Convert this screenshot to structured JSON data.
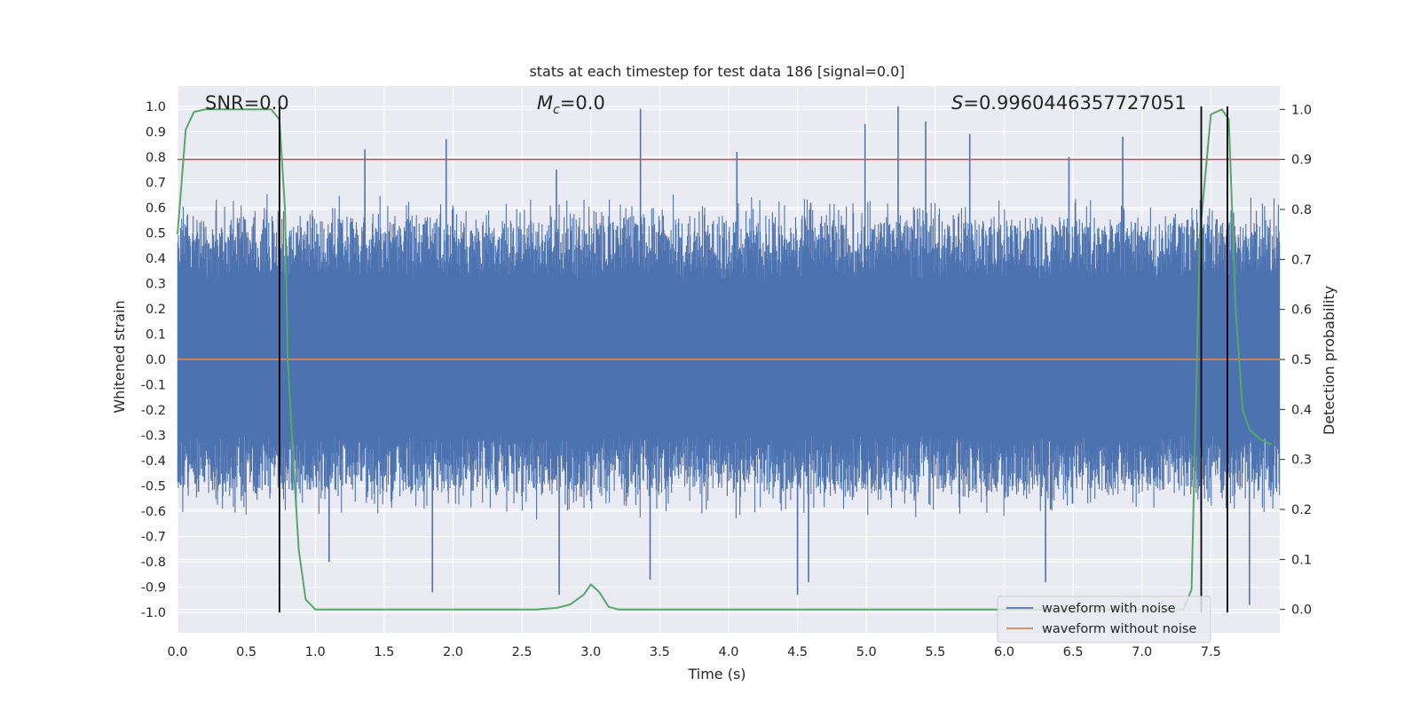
{
  "chart_data": {
    "type": "line",
    "title": "stats at each timestep for test data 186 [signal=0.0]",
    "xlabel": "Time (s)",
    "ylabel": "Whitened strain",
    "y2label": "Detection probability",
    "xlim": [
      0.0,
      8.0
    ],
    "ylim": [
      -1.08,
      1.08
    ],
    "y2lim": [
      -0.0467,
      1.0467
    ],
    "grid": true,
    "legend_placement": "lower-right",
    "xticks": [
      "0.0",
      "0.5",
      "1.0",
      "1.5",
      "2.0",
      "2.5",
      "3.0",
      "3.5",
      "4.0",
      "4.5",
      "5.0",
      "5.5",
      "6.0",
      "6.5",
      "7.0",
      "7.5"
    ],
    "yticks": [
      "1.0",
      "0.9",
      "0.8",
      "0.7",
      "0.6",
      "0.5",
      "0.4",
      "0.3",
      "0.2",
      "0.1",
      "0.0",
      "-0.1",
      "-0.2",
      "-0.3",
      "-0.4",
      "-0.5",
      "-0.6",
      "-0.7",
      "-0.8",
      "-0.9",
      "-1.0"
    ],
    "y2ticks": [
      "1.0",
      "0.9",
      "0.8",
      "0.7",
      "0.6",
      "0.5",
      "0.4",
      "0.3",
      "0.2",
      "0.1",
      "0.0"
    ],
    "annotations": {
      "snr": "SNR=0.0",
      "mc_symbol": "M",
      "mc_sub": "c",
      "mc_value": "=0.0",
      "s_symbol": "S",
      "s_value": "=0.9960446357727051"
    },
    "threshold": {
      "y2": 0.9,
      "color": "#c44e52"
    },
    "vertical_lines": [
      0.74,
      7.43,
      7.62
    ],
    "series": [
      {
        "name": "waveform with noise",
        "color": "#4c72b0",
        "kind": "noise",
        "axis": "left",
        "spike_peaks": [
          [
            0.74,
            0.97
          ],
          [
            1.36,
            0.83
          ],
          [
            1.95,
            0.87
          ],
          [
            3.36,
            0.99
          ],
          [
            4.06,
            0.82
          ],
          [
            4.99,
            0.93
          ],
          [
            5.23,
            1.0
          ],
          [
            5.43,
            0.94
          ],
          [
            5.75,
            0.89
          ],
          [
            6.86,
            0.88
          ],
          [
            2.75,
            0.75
          ],
          [
            6.47,
            0.8
          ]
        ],
        "spike_troughs": [
          [
            1.85,
            -0.92
          ],
          [
            2.77,
            -0.93
          ],
          [
            4.5,
            -0.93
          ],
          [
            4.58,
            -0.88
          ],
          [
            6.3,
            -0.88
          ],
          [
            7.78,
            -0.97
          ],
          [
            3.43,
            -0.87
          ],
          [
            1.1,
            -0.8
          ]
        ]
      },
      {
        "name": "waveform without noise",
        "color": "#dd8452",
        "kind": "flat",
        "axis": "left",
        "value": 0.0
      },
      {
        "name": "",
        "color": "#55a868",
        "kind": "probability",
        "axis": "right",
        "x": [
          0.0,
          0.06,
          0.12,
          0.2,
          0.3,
          0.4,
          0.5,
          0.6,
          0.68,
          0.74,
          0.78,
          0.8,
          0.84,
          0.88,
          0.93,
          1.0,
          1.2,
          2.0,
          2.6,
          2.75,
          2.85,
          2.95,
          3.0,
          3.06,
          3.13,
          3.2,
          3.5,
          5.0,
          6.5,
          7.0,
          7.3,
          7.36,
          7.42,
          7.5,
          7.58,
          7.63,
          7.68,
          7.73,
          7.78,
          7.86,
          7.94
        ],
        "y": [
          0.75,
          0.96,
          0.995,
          1.0,
          1.0,
          1.0,
          1.0,
          1.0,
          1.0,
          0.98,
          0.8,
          0.5,
          0.3,
          0.12,
          0.02,
          0.0,
          0.0,
          0.0,
          0.0,
          0.003,
          0.01,
          0.03,
          0.05,
          0.035,
          0.005,
          0.0,
          0.0,
          0.0,
          0.0,
          0.0,
          0.0,
          0.04,
          0.75,
          0.99,
          1.0,
          0.98,
          0.6,
          0.4,
          0.36,
          0.34,
          0.33
        ]
      }
    ]
  }
}
